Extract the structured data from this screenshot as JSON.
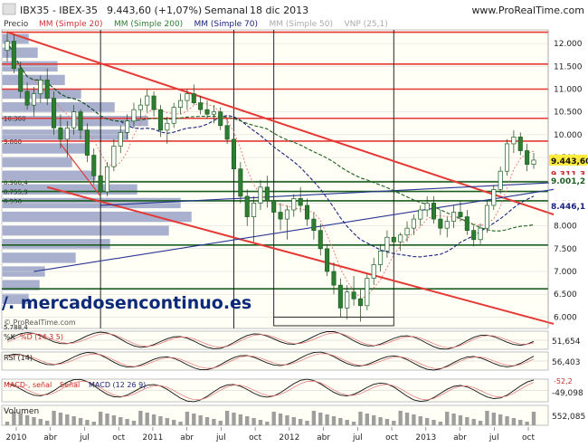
{
  "header": {
    "symbol": "IBX35 - IBEX-35",
    "quote": "9.443,60 (+1,07%)",
    "timeframe": "Semanal",
    "date": "18 dic 2013",
    "site": "www.ProRealTime.com"
  },
  "legend": [
    {
      "label": "Precio",
      "color": "#333333"
    },
    {
      "label": "MM (Simple 20)",
      "color": "#cc3333"
    },
    {
      "label": "MM (Simple 200)",
      "color": "#2e7d32"
    },
    {
      "label": "MM (Simple 70)",
      "color": "#1a237e"
    },
    {
      "label": "MM (Simple 50)",
      "color": "#aaaaaa"
    },
    {
      "label": "VNP (25,1)",
      "color": "#aaaaaa"
    }
  ],
  "watermark": "/. mercadosencontinuo.es",
  "credit": "© ProRealTime.com",
  "price_labels": {
    "current": "9.443,60",
    "ma_a": "9.311,3",
    "ma_b": "9.001,2",
    "ma_c": "8.446,1"
  },
  "volume_profile_labels": [
    "10.360",
    "9.860",
    "8.966,4",
    "8.755,9",
    "8.550",
    "5.788,4"
  ],
  "indicators": {
    "stoch": {
      "label": "%D (14 3 5)",
      "prefix": "%K",
      "value": "51,654"
    },
    "rsi": {
      "label": "RSI (14)",
      "value": "56,403"
    },
    "macd": {
      "label": "MACD-, señal",
      "label2": "Señal",
      "label3": "MACD (12 26 9)",
      "value": "-49,098",
      "value2": "-52,2"
    },
    "volume": {
      "label": "Volumen",
      "value": "552,085"
    }
  },
  "colors": {
    "bull": "#2e7d32",
    "bear": "#2e7d32",
    "resistance": "#e53935",
    "support": "#1b5e20",
    "trend_blue": "#283593",
    "ma_red": "#e57373",
    "ma_green_dash": "#1b5e20",
    "ma_blue_dash": "#1a237e",
    "price_tag": "#ffeb3b"
  },
  "chart_data": {
    "type": "candlestick",
    "x_labels": [
      "2010",
      "abr",
      "jul",
      "oct",
      "2011",
      "abr",
      "jul",
      "oct",
      "2012",
      "abr",
      "jul",
      "oct",
      "2013",
      "abr",
      "jul",
      "oct"
    ],
    "y_ticks": [
      "12.000",
      "11.500",
      "11.000",
      "10.500",
      "10.000",
      "9.500",
      "9.000",
      "8.500",
      "8.000",
      "7.500",
      "7.000",
      "6.500",
      "6.000"
    ],
    "ylim": [
      5750,
      12300
    ],
    "horizontal_levels": [
      12250,
      11550,
      11000,
      10360,
      9860,
      8966,
      8756,
      8550,
      7580,
      6620
    ],
    "horizontal_level_styles": [
      "resistance",
      "resistance",
      "resistance",
      "resistance",
      "resistance",
      "support",
      "support",
      "support",
      "support",
      "support"
    ],
    "last_close": 9443.6,
    "bars": [
      {
        "o": 11850,
        "h": 12250,
        "l": 11600,
        "c": 12050
      },
      {
        "o": 12050,
        "h": 12200,
        "l": 11350,
        "c": 11450
      },
      {
        "o": 11450,
        "h": 11600,
        "l": 10800,
        "c": 10950
      },
      {
        "o": 10950,
        "h": 11150,
        "l": 10550,
        "c": 10650
      },
      {
        "o": 10650,
        "h": 11050,
        "l": 10400,
        "c": 10900
      },
      {
        "o": 10900,
        "h": 11300,
        "l": 10700,
        "c": 11200
      },
      {
        "o": 11200,
        "h": 11450,
        "l": 10650,
        "c": 10800
      },
      {
        "o": 10800,
        "h": 10950,
        "l": 10000,
        "c": 10150
      },
      {
        "o": 10150,
        "h": 10450,
        "l": 9700,
        "c": 9900
      },
      {
        "o": 9900,
        "h": 10300,
        "l": 9500,
        "c": 10150
      },
      {
        "o": 10150,
        "h": 10650,
        "l": 10000,
        "c": 10500
      },
      {
        "o": 10500,
        "h": 10550,
        "l": 9900,
        "c": 10100
      },
      {
        "o": 10100,
        "h": 10250,
        "l": 9400,
        "c": 9550
      },
      {
        "o": 9550,
        "h": 9700,
        "l": 8900,
        "c": 9100
      },
      {
        "o": 9100,
        "h": 9300,
        "l": 8550,
        "c": 8750
      },
      {
        "o": 8750,
        "h": 9400,
        "l": 8650,
        "c": 9300
      },
      {
        "o": 9300,
        "h": 9900,
        "l": 9200,
        "c": 9750
      },
      {
        "o": 9750,
        "h": 10200,
        "l": 9600,
        "c": 10050
      },
      {
        "o": 10050,
        "h": 10450,
        "l": 9900,
        "c": 10300
      },
      {
        "o": 10300,
        "h": 10700,
        "l": 10150,
        "c": 10550
      },
      {
        "o": 10550,
        "h": 10800,
        "l": 10350,
        "c": 10650
      },
      {
        "o": 10650,
        "h": 11000,
        "l": 10500,
        "c": 10850
      },
      {
        "o": 10850,
        "h": 10950,
        "l": 10400,
        "c": 10550
      },
      {
        "o": 10550,
        "h": 10650,
        "l": 9950,
        "c": 10100
      },
      {
        "o": 10100,
        "h": 10400,
        "l": 9800,
        "c": 10250
      },
      {
        "o": 10250,
        "h": 10700,
        "l": 10150,
        "c": 10600
      },
      {
        "o": 10600,
        "h": 10900,
        "l": 10450,
        "c": 10750
      },
      {
        "o": 10750,
        "h": 11000,
        "l": 10550,
        "c": 10900
      },
      {
        "o": 10900,
        "h": 11100,
        "l": 10650,
        "c": 10700
      },
      {
        "o": 10700,
        "h": 10850,
        "l": 10450,
        "c": 10550
      },
      {
        "o": 10550,
        "h": 10750,
        "l": 10350,
        "c": 10450
      },
      {
        "o": 10450,
        "h": 10650,
        "l": 10250,
        "c": 10500
      },
      {
        "o": 10500,
        "h": 10600,
        "l": 10100,
        "c": 10200
      },
      {
        "o": 10200,
        "h": 10350,
        "l": 9800,
        "c": 9900
      },
      {
        "o": 9900,
        "h": 10000,
        "l": 9100,
        "c": 9250
      },
      {
        "o": 9250,
        "h": 9400,
        "l": 8500,
        "c": 8650
      },
      {
        "o": 8650,
        "h": 8800,
        "l": 8000,
        "c": 8200
      },
      {
        "o": 8200,
        "h": 8650,
        "l": 7650,
        "c": 8500
      },
      {
        "o": 8500,
        "h": 9000,
        "l": 8350,
        "c": 8850
      },
      {
        "o": 8850,
        "h": 9100,
        "l": 8400,
        "c": 8550
      },
      {
        "o": 8550,
        "h": 8700,
        "l": 8150,
        "c": 8300
      },
      {
        "o": 8300,
        "h": 8500,
        "l": 7900,
        "c": 8150
      },
      {
        "o": 8150,
        "h": 8450,
        "l": 7700,
        "c": 8350
      },
      {
        "o": 8350,
        "h": 8700,
        "l": 8200,
        "c": 8600
      },
      {
        "o": 8600,
        "h": 8850,
        "l": 8300,
        "c": 8450
      },
      {
        "o": 8450,
        "h": 8600,
        "l": 8000,
        "c": 8150
      },
      {
        "o": 8150,
        "h": 8300,
        "l": 7700,
        "c": 7900
      },
      {
        "o": 7900,
        "h": 8050,
        "l": 7350,
        "c": 7500
      },
      {
        "o": 7500,
        "h": 7600,
        "l": 6900,
        "c": 7000
      },
      {
        "o": 7000,
        "h": 7200,
        "l": 6500,
        "c": 6700
      },
      {
        "o": 6700,
        "h": 6850,
        "l": 6000,
        "c": 6200
      },
      {
        "o": 6200,
        "h": 6700,
        "l": 5950,
        "c": 6550
      },
      {
        "o": 6550,
        "h": 6900,
        "l": 6250,
        "c": 6400
      },
      {
        "o": 6400,
        "h": 6600,
        "l": 5900,
        "c": 6250
      },
      {
        "o": 6250,
        "h": 6950,
        "l": 6150,
        "c": 6850
      },
      {
        "o": 6850,
        "h": 7300,
        "l": 6700,
        "c": 7150
      },
      {
        "o": 7150,
        "h": 7600,
        "l": 7000,
        "c": 7450
      },
      {
        "o": 7450,
        "h": 7900,
        "l": 7300,
        "c": 7750
      },
      {
        "o": 7750,
        "h": 8000,
        "l": 7500,
        "c": 7650
      },
      {
        "o": 7650,
        "h": 7850,
        "l": 7450,
        "c": 7800
      },
      {
        "o": 7800,
        "h": 8100,
        "l": 7650,
        "c": 7950
      },
      {
        "o": 7950,
        "h": 8250,
        "l": 7800,
        "c": 8150
      },
      {
        "o": 8150,
        "h": 8450,
        "l": 8000,
        "c": 8350
      },
      {
        "o": 8350,
        "h": 8650,
        "l": 8200,
        "c": 8500
      },
      {
        "o": 8500,
        "h": 8650,
        "l": 8050,
        "c": 8150
      },
      {
        "o": 8150,
        "h": 8350,
        "l": 7800,
        "c": 7950
      },
      {
        "o": 7950,
        "h": 8200,
        "l": 7750,
        "c": 8100
      },
      {
        "o": 8100,
        "h": 8450,
        "l": 7950,
        "c": 8300
      },
      {
        "o": 8300,
        "h": 8550,
        "l": 8100,
        "c": 8200
      },
      {
        "o": 8200,
        "h": 8350,
        "l": 7800,
        "c": 7900
      },
      {
        "o": 7900,
        "h": 8000,
        "l": 7550,
        "c": 7700
      },
      {
        "o": 7700,
        "h": 8050,
        "l": 7600,
        "c": 7950
      },
      {
        "o": 7950,
        "h": 8550,
        "l": 7850,
        "c": 8450
      },
      {
        "o": 8450,
        "h": 8900,
        "l": 8350,
        "c": 8800
      },
      {
        "o": 8800,
        "h": 9300,
        "l": 8700,
        "c": 9200
      },
      {
        "o": 9200,
        "h": 9900,
        "l": 9100,
        "c": 9800
      },
      {
        "o": 9800,
        "h": 10100,
        "l": 9600,
        "c": 9950
      },
      {
        "o": 9950,
        "h": 10050,
        "l": 9550,
        "c": 9650
      },
      {
        "o": 9650,
        "h": 9800,
        "l": 9200,
        "c": 9350
      },
      {
        "o": 9350,
        "h": 9600,
        "l": 9250,
        "c": 9443.6
      }
    ]
  }
}
